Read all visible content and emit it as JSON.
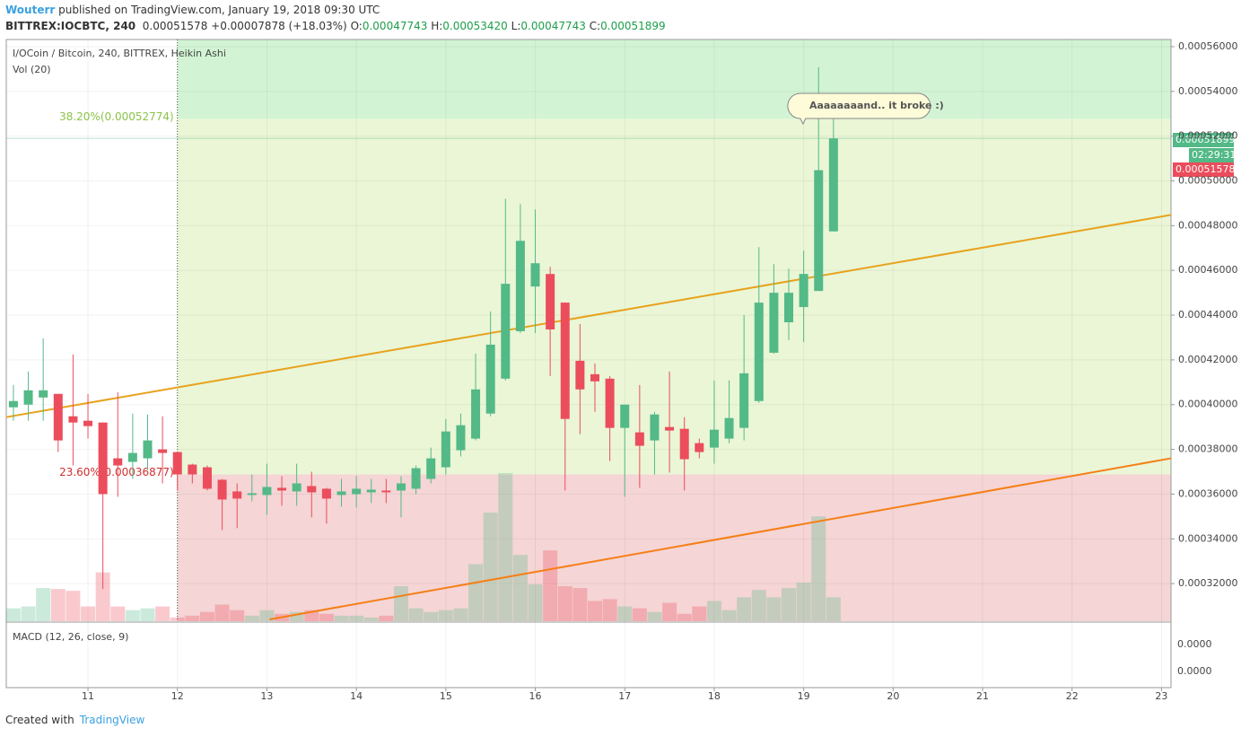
{
  "header": {
    "author": "Wouterr",
    "published": "published on TradingView.com, January 19, 2018 09:30 UTC",
    "symbol": "BITTREX:IOCBTC, 240",
    "last": "0.00051578",
    "change": "+0.00007878 (+18.03%)",
    "o_key": "O:",
    "o": "0.00047743",
    "h_key": "H:",
    "h": "0.00053420",
    "l_key": "L:",
    "l": "0.00047743",
    "c_key": "C:",
    "c": "0.00051899",
    "price_tag": "0.00051899",
    "countdown": "02:29:31",
    "last_tag": "0.00051578"
  },
  "footer": {
    "created": "Created with",
    "brand": "TradingView"
  },
  "chart_data": {
    "type": "candlestick",
    "title": "I/OCoin / Bitcoin, 240, BITTREX, Heikin Ashi",
    "volume_label": "Vol (20)",
    "up_color": "#53b987",
    "down_color": "#eb4d5c",
    "x": [
      10.1667,
      10.3333,
      10.5,
      10.6667,
      10.8333,
      11,
      11.1667,
      11.3333,
      11.5,
      11.6667,
      11.8333,
      12,
      12.1667,
      12.3333,
      12.5,
      12.6667,
      12.8333,
      13,
      13.1667,
      13.3333,
      13.5,
      13.6667,
      13.8333,
      14,
      14.1667,
      14.3333,
      14.5,
      14.6667,
      14.8333,
      15,
      15.1667,
      15.3333,
      15.5,
      15.6667,
      15.8333,
      16,
      16.1667,
      16.3333,
      16.5,
      16.6667,
      16.8333,
      17,
      17.1667,
      17.3333,
      17.5,
      17.6667,
      17.8333,
      18,
      18.1667,
      18.3333,
      18.5,
      18.6667,
      18.8333,
      19,
      19.1667,
      19.3333
    ],
    "open": [
      0.0003988,
      0.0004,
      0.0004032,
      0.0004048,
      0.0003948,
      0.0003928,
      0.000392,
      0.000376,
      0.0003744,
      0.000376,
      0.00038,
      0.0003788,
      0.0003732,
      0.000372,
      0.0003664,
      0.0003612,
      0.0003596,
      0.0003596,
      0.0003628,
      0.0003612,
      0.0003636,
      0.0003624,
      0.0003596,
      0.00036,
      0.0003608,
      0.0003616,
      0.0003616,
      0.0003624,
      0.0003668,
      0.000372,
      0.0003796,
      0.0003848,
      0.000396,
      0.0004116,
      0.0004328,
      0.0004528,
      0.0004584,
      0.0004456,
      0.0004196,
      0.0004136,
      0.0004116,
      0.0003896,
      0.0003876,
      0.000384,
      0.00039,
      0.0003892,
      0.0003828,
      0.0003808,
      0.0003848,
      0.0003896,
      0.0004016,
      0.0004232,
      0.0004368,
      0.0004436,
      0.0004508,
      0.00047743
    ],
    "high": [
      0.0004088,
      0.0004148,
      0.0004296,
      0.0004048,
      0.0004224,
      0.0004048,
      0.000392,
      0.0004056,
      0.000396,
      0.0003956,
      0.0003948,
      0.0003788,
      0.0003736,
      0.0003728,
      0.0003668,
      0.0003648,
      0.0003688,
      0.0003736,
      0.000368,
      0.0003736,
      0.00037,
      0.0003628,
      0.0003668,
      0.000368,
      0.0003668,
      0.0003668,
      0.000368,
      0.0003728,
      0.0003808,
      0.0003936,
      0.000396,
      0.0004228,
      0.0004416,
      0.000492,
      0.0004896,
      0.0004872,
      0.0004616,
      0.0004456,
      0.000436,
      0.0004184,
      0.0004128,
      0.0004,
      0.0004088,
      0.0003968,
      0.0004148,
      0.0003944,
      0.0003848,
      0.0004108,
      0.0004108,
      0.00044,
      0.0004704,
      0.0004628,
      0.0004608,
      0.0004688,
      0.0005508,
      0.0005342
    ],
    "low": [
      0.0003928,
      0.0003928,
      0.0003928,
      0.0003788,
      0.0003728,
      0.0003848,
      0.0003176,
      0.0003588,
      0.0003668,
      0.0003708,
      0.0003648,
      0.0003616,
      0.0003648,
      0.0003616,
      0.000344,
      0.0003448,
      0.0003568,
      0.0003508,
      0.0003548,
      0.0003548,
      0.0003496,
      0.0003468,
      0.0003544,
      0.000354,
      0.000356,
      0.000356,
      0.0003496,
      0.00036,
      0.0003648,
      0.0003688,
      0.0003768,
      0.000384,
      0.0003948,
      0.0004108,
      0.000432,
      0.000432,
      0.0004128,
      0.0003616,
      0.0003868,
      0.0003968,
      0.0003748,
      0.0003588,
      0.0003628,
      0.0003688,
      0.0003696,
      0.0003616,
      0.000376,
      0.0003736,
      0.0003828,
      0.000384,
      0.0004008,
      0.0004228,
      0.0004288,
      0.000428,
      0.0004508,
      0.00047743
    ],
    "close": [
      0.0004016,
      0.0004064,
      0.0004064,
      0.000384,
      0.000392,
      0.0003904,
      0.00036,
      0.0003728,
      0.0003784,
      0.000384,
      0.0003784,
      0.0003688,
      0.0003688,
      0.0003624,
      0.0003576,
      0.000358,
      0.0003604,
      0.0003632,
      0.0003616,
      0.0003648,
      0.0003608,
      0.000358,
      0.0003612,
      0.0003624,
      0.000362,
      0.0003608,
      0.0003648,
      0.0003716,
      0.000376,
      0.000388,
      0.0003908,
      0.0004068,
      0.0004268,
      0.000454,
      0.0004732,
      0.0004632,
      0.0004336,
      0.0003936,
      0.0004068,
      0.0004104,
      0.0003896,
      0.0004,
      0.0003816,
      0.0003956,
      0.0003884,
      0.0003756,
      0.0003788,
      0.0003888,
      0.000394,
      0.000414,
      0.0004456,
      0.00045,
      0.00045,
      0.0004584,
      0.0005048,
      0.00051899
    ],
    "volume": [
      14,
      16,
      36,
      35,
      33,
      16,
      53,
      16,
      12,
      14,
      16,
      4,
      6,
      10,
      18,
      12,
      6,
      12,
      8,
      10,
      12,
      8,
      6,
      6,
      4,
      6,
      38,
      14,
      10,
      12,
      14,
      62,
      118,
      161,
      72,
      40,
      77,
      38,
      36,
      22,
      24,
      16,
      14,
      10,
      20,
      8,
      16,
      22,
      12,
      26,
      34,
      26,
      36,
      42,
      114,
      26
    ],
    "xlim": [
      10.087,
      23.106
    ],
    "ylim": [
      0.0003032,
      0.0005632
    ],
    "xticks": [
      11,
      12,
      13,
      14,
      15,
      16,
      17,
      18,
      19,
      20,
      21,
      22,
      23
    ],
    "yticks": [
      {
        "value": 0.00032,
        "label": "0.00032000"
      },
      {
        "value": 0.00034,
        "label": "0.00034000"
      },
      {
        "value": 0.00036,
        "label": "0.00036000"
      },
      {
        "value": 0.00038,
        "label": "0.00038000"
      },
      {
        "value": 0.0004,
        "label": "0.00040000"
      },
      {
        "value": 0.00042,
        "label": "0.00042000"
      },
      {
        "value": 0.00044,
        "label": "0.00044000"
      },
      {
        "value": 0.00046,
        "label": "0.00046000"
      },
      {
        "value": 0.00048,
        "label": "0.00048000"
      },
      {
        "value": 0.0005,
        "label": "0.00050000"
      },
      {
        "value": 0.00052,
        "label": "0.00052000"
      },
      {
        "value": 0.00054,
        "label": "0.00054000"
      },
      {
        "value": 0.00056,
        "label": "0.00056000"
      }
    ],
    "trend_lines": [
      {
        "color": "#e8a21c",
        "x": [
          10.087,
          23.106
        ],
        "y": [
          0.0003944,
          0.0004848
        ]
      },
      {
        "color": "#f57f17",
        "x": [
          13.03,
          23.106
        ],
        "y": [
          0.000304,
          0.000376
        ]
      }
    ],
    "fibonacci": {
      "x_start": 12,
      "levels": [
        {
          "value": 0.00052774,
          "label": "38.20%(0.00052774)",
          "color": "#8bc34a"
        },
        {
          "value": 0.00036877,
          "label": "23.60%(0.00036877)",
          "color": "#d32f2f"
        }
      ]
    },
    "annotation": "Aaaaaaaand.. it broke :)",
    "macd": {
      "label": "MACD (12, 26, close, 9)",
      "tick_labels": [
        "0.0000",
        "0.0000"
      ]
    }
  }
}
